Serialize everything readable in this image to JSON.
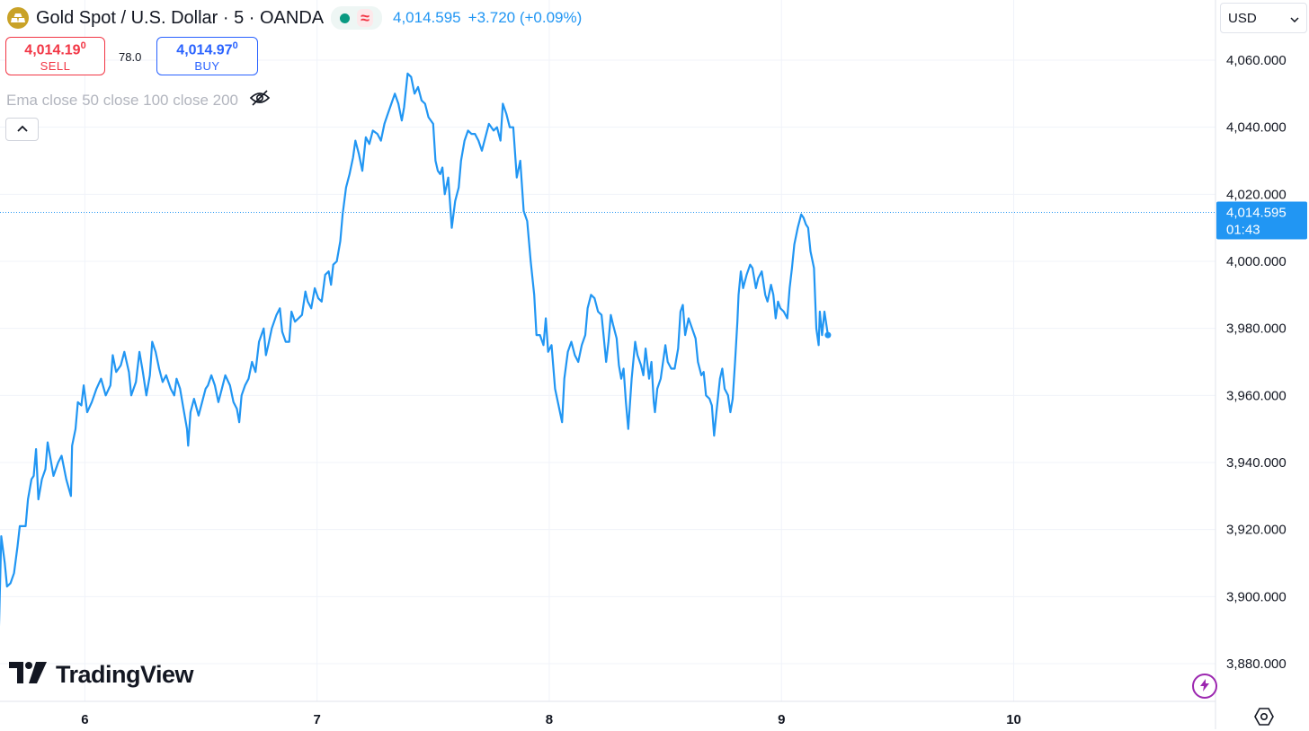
{
  "header": {
    "symbol": "Gold Spot / U.S. Dollar · 5 · OANDA",
    "last_price": "4,014.595",
    "change": "+3.720 (+0.09%)",
    "status_glyph": "≈"
  },
  "trade": {
    "sell_price": "4,014.19",
    "sell_price_sup": "0",
    "sell_label": "SELL",
    "spread": "78.0",
    "buy_price": "4,014.97",
    "buy_price_sup": "0",
    "buy_label": "BUY"
  },
  "indicator": {
    "label": "Ema close 50 close 100 close 200"
  },
  "currency": {
    "selected": "USD"
  },
  "branding": {
    "name": "TradingView"
  },
  "colors": {
    "line": "#2196f3",
    "grid": "#f0f3fa",
    "axis_text": "#131722",
    "sell": "#f23645",
    "buy": "#2962ff",
    "accent": "#2196f3"
  },
  "icons": {
    "symbol": "gold-bars-icon",
    "status": "market-open-icon",
    "visibility": "eye-off-icon",
    "collapse": "chevron-up-icon",
    "dropdown": "chevron-down-icon",
    "logo": "tradingview-logo-icon",
    "bolt": "lightning-bolt-icon",
    "settings": "settings-gear-icon"
  },
  "chart_data": {
    "type": "line",
    "title": "Gold Spot / U.S. Dollar · 5 · OANDA",
    "xlabel": "",
    "ylabel": "",
    "x_ticks": [
      {
        "label": "6",
        "x": 6
      },
      {
        "label": "7",
        "x": 7
      },
      {
        "label": "8",
        "x": 8
      },
      {
        "label": "9",
        "x": 9
      },
      {
        "label": "10",
        "x": 10
      }
    ],
    "y_ticks": [
      "4,060.000",
      "4,040.000",
      "4,020.000",
      "4,000.000",
      "3,980.000",
      "3,960.000",
      "3,940.000",
      "3,920.000",
      "3,900.000",
      "3,880.000"
    ],
    "y_tick_values": [
      4060,
      4040,
      4020,
      4000,
      3980,
      3960,
      3940,
      3920,
      3900,
      3880
    ],
    "xlim": [
      5.63,
      10.9
    ],
    "ylim": [
      3872,
      4080
    ],
    "grid": true,
    "last_value": 4014.595,
    "last_label": "4,014.595",
    "countdown": "01:43",
    "series": [
      {
        "values": [
          [
            5.63,
            3890
          ],
          [
            5.64,
            3918
          ],
          [
            5.655,
            3910
          ],
          [
            5.665,
            3903
          ],
          [
            5.68,
            3904
          ],
          [
            5.695,
            3907
          ],
          [
            5.71,
            3915
          ],
          [
            5.72,
            3921
          ],
          [
            5.745,
            3921
          ],
          [
            5.755,
            3929
          ],
          [
            5.77,
            3935
          ],
          [
            5.78,
            3936
          ],
          [
            5.79,
            3944
          ],
          [
            5.8,
            3929
          ],
          [
            5.815,
            3935
          ],
          [
            5.83,
            3938
          ],
          [
            5.84,
            3946
          ],
          [
            5.85,
            3942
          ],
          [
            5.865,
            3936
          ],
          [
            5.885,
            3940
          ],
          [
            5.9,
            3942
          ],
          [
            5.92,
            3935
          ],
          [
            5.94,
            3930
          ],
          [
            5.945,
            3945
          ],
          [
            5.96,
            3950
          ],
          [
            5.97,
            3958
          ],
          [
            5.985,
            3957
          ],
          [
            5.995,
            3963
          ],
          [
            6.01,
            3955
          ],
          [
            6.03,
            3958
          ],
          [
            6.05,
            3962
          ],
          [
            6.07,
            3965
          ],
          [
            6.09,
            3960
          ],
          [
            6.11,
            3963
          ],
          [
            6.12,
            3972
          ],
          [
            6.135,
            3967
          ],
          [
            6.155,
            3969
          ],
          [
            6.17,
            3973
          ],
          [
            6.19,
            3967
          ],
          [
            6.2,
            3960
          ],
          [
            6.22,
            3964
          ],
          [
            6.235,
            3973
          ],
          [
            6.25,
            3967
          ],
          [
            6.265,
            3960
          ],
          [
            6.28,
            3966
          ],
          [
            6.29,
            3976
          ],
          [
            6.305,
            3973
          ],
          [
            6.32,
            3968
          ],
          [
            6.335,
            3964
          ],
          [
            6.35,
            3966
          ],
          [
            6.37,
            3962
          ],
          [
            6.385,
            3960
          ],
          [
            6.395,
            3965
          ],
          [
            6.41,
            3962
          ],
          [
            6.425,
            3956
          ],
          [
            6.44,
            3950
          ],
          [
            6.445,
            3945
          ],
          [
            6.455,
            3955
          ],
          [
            6.47,
            3959
          ],
          [
            6.49,
            3954
          ],
          [
            6.505,
            3958
          ],
          [
            6.52,
            3962
          ],
          [
            6.53,
            3963
          ],
          [
            6.545,
            3966
          ],
          [
            6.56,
            3963
          ],
          [
            6.575,
            3958
          ],
          [
            6.59,
            3962
          ],
          [
            6.605,
            3966
          ],
          [
            6.625,
            3963
          ],
          [
            6.64,
            3958
          ],
          [
            6.655,
            3956
          ],
          [
            6.665,
            3952
          ],
          [
            6.675,
            3960
          ],
          [
            6.69,
            3963
          ],
          [
            6.705,
            3965
          ],
          [
            6.72,
            3970
          ],
          [
            6.735,
            3967
          ],
          [
            6.75,
            3976
          ],
          [
            6.77,
            3980
          ],
          [
            6.78,
            3972
          ],
          [
            6.79,
            3975
          ],
          [
            6.805,
            3980
          ],
          [
            6.815,
            3982
          ],
          [
            6.825,
            3984
          ],
          [
            6.84,
            3986
          ],
          [
            6.85,
            3979
          ],
          [
            6.865,
            3976
          ],
          [
            6.88,
            3976
          ],
          [
            6.89,
            3985
          ],
          [
            6.905,
            3982
          ],
          [
            6.92,
            3983
          ],
          [
            6.935,
            3984
          ],
          [
            6.95,
            3991
          ],
          [
            6.96,
            3988
          ],
          [
            6.975,
            3986
          ],
          [
            6.99,
            3992
          ],
          [
            7.005,
            3989
          ],
          [
            7.02,
            3988
          ],
          [
            7.035,
            3996
          ],
          [
            7.05,
            3997
          ],
          [
            7.06,
            3993
          ],
          [
            7.07,
            3999
          ],
          [
            7.085,
            4000
          ],
          [
            7.1,
            4006
          ],
          [
            7.11,
            4014
          ],
          [
            7.125,
            4022
          ],
          [
            7.14,
            4026
          ],
          [
            7.155,
            4031
          ],
          [
            7.165,
            4036
          ],
          [
            7.18,
            4032
          ],
          [
            7.195,
            4027
          ],
          [
            7.21,
            4037
          ],
          [
            7.225,
            4035
          ],
          [
            7.24,
            4039
          ],
          [
            7.26,
            4038
          ],
          [
            7.275,
            4036
          ],
          [
            7.29,
            4041
          ],
          [
            7.305,
            4044
          ],
          [
            7.32,
            4047
          ],
          [
            7.335,
            4050
          ],
          [
            7.35,
            4047
          ],
          [
            7.365,
            4042
          ],
          [
            7.375,
            4046
          ],
          [
            7.39,
            4056
          ],
          [
            7.405,
            4055
          ],
          [
            7.42,
            4050
          ],
          [
            7.435,
            4052
          ],
          [
            7.45,
            4048
          ],
          [
            7.465,
            4047
          ],
          [
            7.48,
            4043
          ],
          [
            7.5,
            4041
          ],
          [
            7.51,
            4030
          ],
          [
            7.52,
            4027
          ],
          [
            7.53,
            4026
          ],
          [
            7.54,
            4028
          ],
          [
            7.55,
            4020
          ],
          [
            7.565,
            4025
          ],
          [
            7.58,
            4010
          ],
          [
            7.595,
            4018
          ],
          [
            7.61,
            4022
          ],
          [
            7.62,
            4030
          ],
          [
            7.635,
            4036
          ],
          [
            7.65,
            4039
          ],
          [
            7.665,
            4038
          ],
          [
            7.68,
            4038
          ],
          [
            7.695,
            4036
          ],
          [
            7.71,
            4033
          ],
          [
            7.725,
            4037
          ],
          [
            7.74,
            4041
          ],
          [
            7.76,
            4039
          ],
          [
            7.775,
            4040
          ],
          [
            7.79,
            4036
          ],
          [
            7.8,
            4047
          ],
          [
            7.815,
            4044
          ],
          [
            7.83,
            4040
          ],
          [
            7.845,
            4040
          ],
          [
            7.86,
            4025
          ],
          [
            7.875,
            4030
          ],
          [
            7.89,
            4015
          ],
          [
            7.905,
            4012
          ],
          [
            7.92,
            4000
          ],
          [
            7.935,
            3990
          ],
          [
            7.945,
            3978
          ],
          [
            7.96,
            3978
          ],
          [
            7.975,
            3975
          ],
          [
            7.985,
            3983
          ],
          [
            7.995,
            3973
          ],
          [
            8.01,
            3975
          ],
          [
            8.025,
            3962
          ],
          [
            8.04,
            3957
          ],
          [
            8.055,
            3952
          ],
          [
            8.065,
            3965
          ],
          [
            8.08,
            3973
          ],
          [
            8.095,
            3976
          ],
          [
            8.11,
            3972
          ],
          [
            8.125,
            3970
          ],
          [
            8.14,
            3975
          ],
          [
            8.155,
            3978
          ],
          [
            8.165,
            3986
          ],
          [
            8.18,
            3990
          ],
          [
            8.195,
            3989
          ],
          [
            8.21,
            3985
          ],
          [
            8.225,
            3984
          ],
          [
            8.235,
            3977
          ],
          [
            8.245,
            3970
          ],
          [
            8.255,
            3976
          ],
          [
            8.265,
            3984
          ],
          [
            8.275,
            3981
          ],
          [
            8.29,
            3977
          ],
          [
            8.3,
            3969
          ],
          [
            8.31,
            3965
          ],
          [
            8.32,
            3968
          ],
          [
            8.33,
            3958
          ],
          [
            8.34,
            3950
          ],
          [
            8.355,
            3965
          ],
          [
            8.37,
            3976
          ],
          [
            8.38,
            3972
          ],
          [
            8.395,
            3969
          ],
          [
            8.405,
            3966
          ],
          [
            8.415,
            3974
          ],
          [
            8.43,
            3965
          ],
          [
            8.44,
            3970
          ],
          [
            8.45,
            3958
          ],
          [
            8.455,
            3955
          ],
          [
            8.465,
            3962
          ],
          [
            8.48,
            3965
          ],
          [
            8.49,
            3970
          ],
          [
            8.5,
            3975
          ],
          [
            8.51,
            3970
          ],
          [
            8.525,
            3968
          ],
          [
            8.54,
            3968
          ],
          [
            8.555,
            3974
          ],
          [
            8.565,
            3985
          ],
          [
            8.575,
            3987
          ],
          [
            8.585,
            3978
          ],
          [
            8.6,
            3983
          ],
          [
            8.615,
            3980
          ],
          [
            8.63,
            3977
          ],
          [
            8.64,
            3970
          ],
          [
            8.655,
            3966
          ],
          [
            8.665,
            3967
          ],
          [
            8.675,
            3960
          ],
          [
            8.69,
            3959
          ],
          [
            8.7,
            3957
          ],
          [
            8.71,
            3948
          ],
          [
            8.72,
            3955
          ],
          [
            8.735,
            3965
          ],
          [
            8.745,
            3968
          ],
          [
            8.755,
            3962
          ],
          [
            8.77,
            3960
          ],
          [
            8.78,
            3955
          ],
          [
            8.79,
            3959
          ],
          [
            8.8,
            3970
          ],
          [
            8.81,
            3982
          ],
          [
            8.815,
            3990
          ],
          [
            8.825,
            3997
          ],
          [
            8.835,
            3992
          ],
          [
            8.85,
            3996
          ],
          [
            8.865,
            3999
          ],
          [
            8.875,
            3998
          ],
          [
            8.89,
            3992
          ],
          [
            8.9,
            3995
          ],
          [
            8.915,
            3997
          ],
          [
            8.93,
            3990
          ],
          [
            8.94,
            3988
          ],
          [
            8.955,
            3993
          ],
          [
            8.965,
            3990
          ],
          [
            8.975,
            3983
          ],
          [
            8.985,
            3988
          ],
          [
            8.995,
            3986
          ],
          [
            9.01,
            3985
          ],
          [
            9.025,
            3983
          ],
          [
            9.035,
            3992
          ],
          [
            9.045,
            3998
          ],
          [
            9.055,
            4005
          ],
          [
            9.07,
            4010
          ],
          [
            9.085,
            4014
          ],
          [
            9.095,
            4013
          ],
          [
            9.105,
            4011
          ],
          [
            9.115,
            4010
          ],
          [
            9.125,
            4003
          ],
          [
            9.14,
            3998
          ],
          [
            9.15,
            3980
          ],
          [
            9.16,
            3975
          ],
          [
            9.165,
            3985
          ],
          [
            9.175,
            3978
          ],
          [
            9.185,
            3985
          ],
          [
            9.2,
            3978
          ]
        ]
      }
    ]
  }
}
